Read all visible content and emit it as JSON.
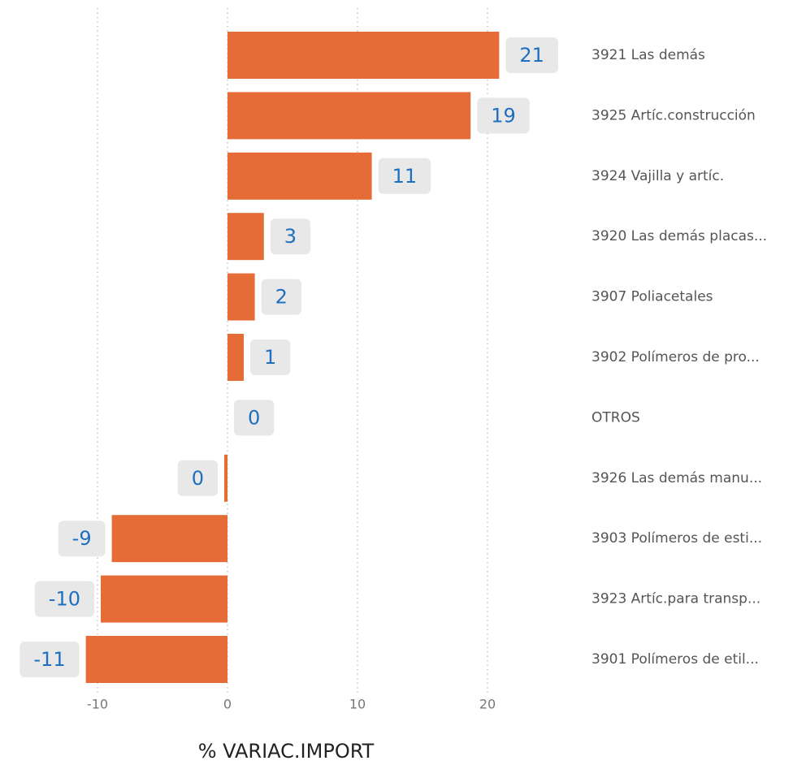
{
  "chart_data": {
    "type": "barh",
    "categories": [
      "3921 Las demás",
      "3925 Artíc.construcción",
      "3924 Vajilla y artíc.",
      "3920 Las demás placas...",
      "3907 Poliacetales",
      "3902 Polímeros de pro...",
      "OTROS",
      "3926 Las demás manu...",
      "3903 Polímeros de esti...",
      "3923 Artíc.para transp...",
      "3901 Polímeros de etil..."
    ],
    "values": [
      20.9,
      18.7,
      11.1,
      2.8,
      2.1,
      1.25,
      0,
      -0.25,
      -8.9,
      -9.75,
      -10.9
    ],
    "value_labels": [
      "21",
      "19",
      "11",
      "3",
      "2",
      "1",
      "0",
      "0",
      "-9",
      "-10",
      "-11"
    ],
    "color": "#e56c37",
    "xlabel": "% VARIAC.IMPORT",
    "xlim": [
      -12,
      22
    ],
    "xticks": [
      -10,
      0,
      10,
      20
    ],
    "grid": true
  }
}
